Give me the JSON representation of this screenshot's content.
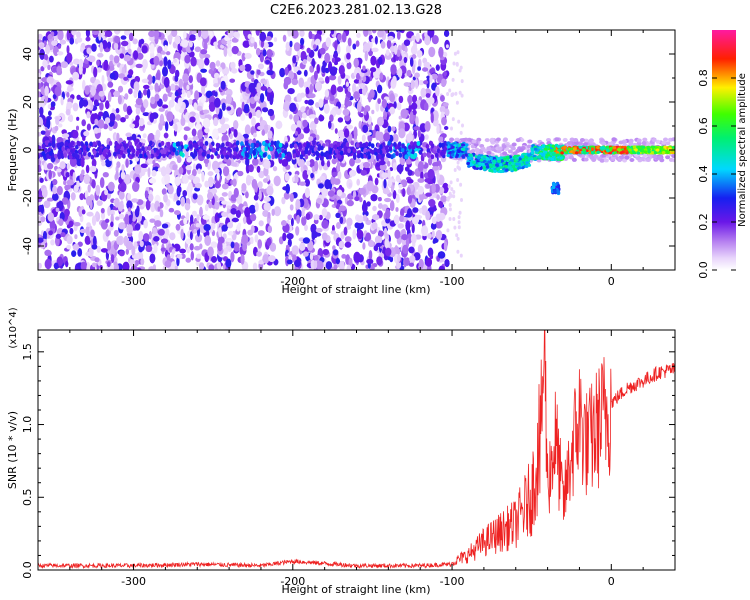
{
  "page_title": "C2E6.2023.281.02.13.G28",
  "chart_data": [
    {
      "type": "heatmap",
      "xlabel": "Height of straight line (km)",
      "ylabel": "Frequency (Hz)",
      "xlim": [
        -360,
        40
      ],
      "ylim": [
        -50,
        50
      ],
      "x_ticks": [
        -300,
        -200,
        -100,
        0
      ],
      "y_ticks": [
        -40,
        -20,
        0,
        20,
        40
      ],
      "colorbar": {
        "label": "Normalized spectral amplitude",
        "range": [
          0.0,
          1.0
        ],
        "ticks": [
          0.0,
          0.2,
          0.4,
          0.6,
          0.8
        ],
        "colormap": "rainbow (white-purple-blue-cyan-green-yellow-red-magenta)"
      },
      "features": [
        {
          "x_range": [
            -360,
            -103
          ],
          "description": "broadband noise, amplitude ~0.05-0.25",
          "freq_range": [
            -50,
            50
          ]
        },
        {
          "x_range": [
            -103,
            40
          ],
          "description": "narrow carrier line near 0 Hz, amplitude rising to ~0.9",
          "freq_range": [
            -5,
            5
          ]
        },
        {
          "x_range": [
            -37,
            -33
          ],
          "description": "secondary blob",
          "freq_range": [
            -18,
            -14
          ]
        }
      ],
      "grid": false
    },
    {
      "type": "line",
      "xlabel": "Height of straight line (km)",
      "ylabel": "SNR (10 * v/v)",
      "y_multiplier": "(x10^4)",
      "xlim": [
        -360,
        40
      ],
      "ylim": [
        0,
        1.65
      ],
      "x_ticks": [
        -300,
        -200,
        -100,
        0
      ],
      "y_ticks": [
        0.0,
        0.5,
        1.0,
        1.5
      ],
      "color": "#ee2222",
      "series": [
        {
          "x": [
            -360,
            -300,
            -260,
            -220,
            -200,
            -160,
            -120,
            -100,
            -90,
            -80,
            -70,
            -60,
            -50,
            -45,
            -42,
            -40,
            -35,
            -30,
            -25,
            -20,
            -15,
            -10,
            -5,
            0,
            10,
            20,
            30,
            40
          ],
          "y": [
            0.03,
            0.03,
            0.04,
            0.03,
            0.06,
            0.03,
            0.03,
            0.04,
            0.08,
            0.15,
            0.2,
            0.25,
            0.4,
            0.7,
            1.6,
            0.6,
            0.9,
            0.45,
            0.8,
            1.05,
            0.85,
            0.95,
            1.05,
            1.15,
            1.25,
            1.3,
            1.36,
            1.38
          ]
        }
      ],
      "grid": false
    }
  ]
}
